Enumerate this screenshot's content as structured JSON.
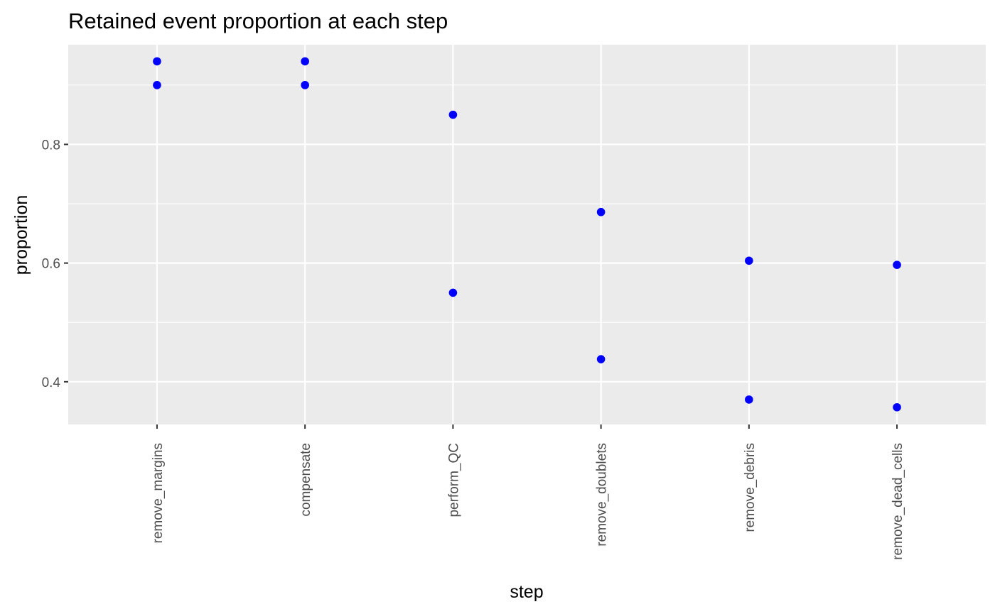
{
  "chart_data": {
    "type": "scatter",
    "title": "Retained event proportion at each step",
    "xlabel": "step",
    "ylabel": "proportion",
    "categories": [
      "remove_margins",
      "compensate",
      "perform_QC",
      "remove_doublets",
      "remove_debris",
      "remove_dead_cells"
    ],
    "ylim": [
      0.328,
      0.968
    ],
    "yticks": [
      0.4,
      0.6,
      0.8
    ],
    "ytick_labels": [
      "0.4",
      "0.6",
      "0.8"
    ],
    "grid": true,
    "legend": "none",
    "points": [
      {
        "x": "remove_margins",
        "y": 0.94
      },
      {
        "x": "remove_margins",
        "y": 0.9
      },
      {
        "x": "compensate",
        "y": 0.94
      },
      {
        "x": "compensate",
        "y": 0.9
      },
      {
        "x": "perform_QC",
        "y": 0.85
      },
      {
        "x": "perform_QC",
        "y": 0.55
      },
      {
        "x": "remove_doublets",
        "y": 0.686
      },
      {
        "x": "remove_doublets",
        "y": 0.438
      },
      {
        "x": "remove_debris",
        "y": 0.604
      },
      {
        "x": "remove_debris",
        "y": 0.37
      },
      {
        "x": "remove_dead_cells",
        "y": 0.597
      },
      {
        "x": "remove_dead_cells",
        "y": 0.357
      }
    ],
    "colors": {
      "point": "#0000ff",
      "panel_background": "#ebebeb",
      "gridline": "#ffffff",
      "tick_label": "#4d4d4d",
      "axis_tick": "#333333"
    }
  }
}
